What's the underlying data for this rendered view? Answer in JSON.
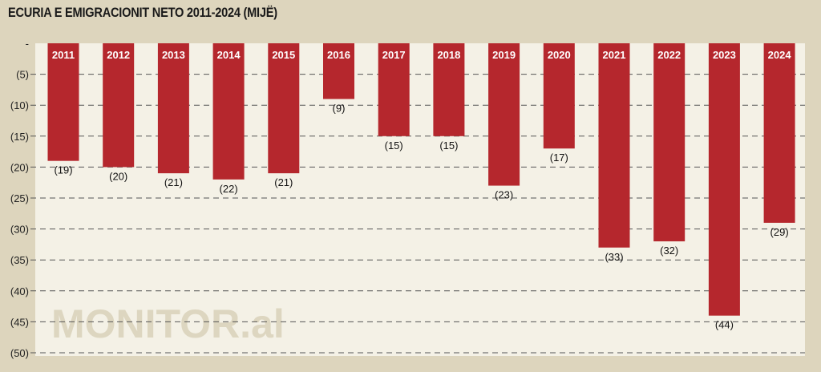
{
  "chart_data": {
    "type": "bar",
    "title": "ECURIA E EMIGRACIONIT NETO 2011-2024 (MIJË)",
    "categories": [
      "2011",
      "2012",
      "2013",
      "2014",
      "2015",
      "2016",
      "2017",
      "2018",
      "2019",
      "2020",
      "2021",
      "2022",
      "2023",
      "2024"
    ],
    "values": [
      -19,
      -20,
      -21,
      -22,
      -21,
      -9,
      -15,
      -15,
      -23,
      -17,
      -33,
      -32,
      -44,
      -29
    ],
    "data_labels": [
      "(19)",
      "(20)",
      "(21)",
      "(22)",
      "(21)",
      "(9)",
      "(15)",
      "(15)",
      "(23)",
      "(17)",
      "(33)",
      "(32)",
      "(44)",
      "(29)"
    ],
    "ylim": [
      -50,
      0
    ],
    "yticks": [
      0,
      -5,
      -10,
      -15,
      -20,
      -25,
      -30,
      -35,
      -40,
      -45,
      -50
    ],
    "ytick_labels": [
      "-",
      "(5)",
      "(10)",
      "(15)",
      "(20)",
      "(25)",
      "(30)",
      "(35)",
      "(40)",
      "(45)",
      "(50)"
    ],
    "grid": true,
    "bar_color": "#b5272d",
    "watermark": "MONITOR.al"
  }
}
